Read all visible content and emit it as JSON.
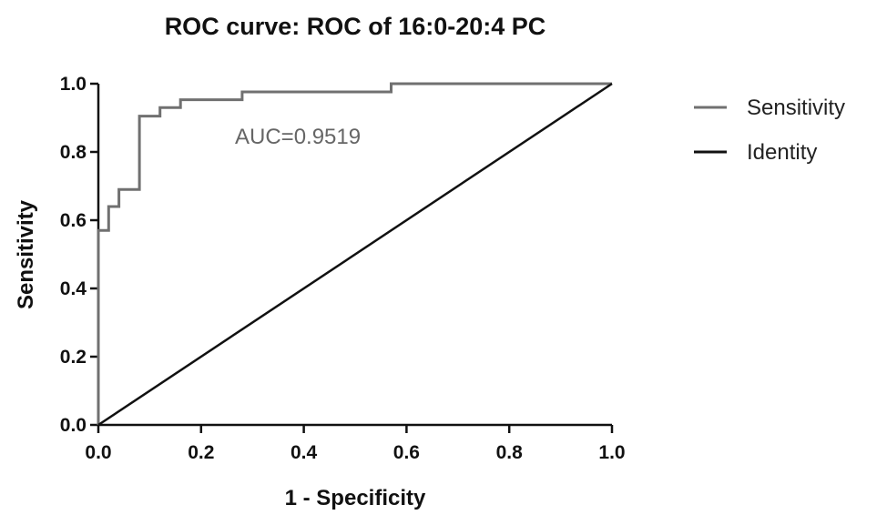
{
  "chart_data": {
    "type": "line",
    "title": "ROC curve: ROC of 16:0-20:4 PC",
    "xlabel": "1 - Specificity",
    "ylabel": "Sensitivity",
    "xlim": [
      0.0,
      1.0
    ],
    "ylim": [
      0.0,
      1.0
    ],
    "x_ticks": [
      "0.0",
      "0.2",
      "0.4",
      "0.6",
      "0.8",
      "1.0"
    ],
    "y_ticks": [
      "0.0",
      "0.2",
      "0.4",
      "0.6",
      "0.8",
      "1.0"
    ],
    "grid": false,
    "legend_position": "right",
    "annotation": "AUC=0.9519",
    "series": [
      {
        "name": "Sensitivity",
        "color": "#707070",
        "step": true,
        "x": [
          0.0,
          0.0,
          0.02,
          0.02,
          0.04,
          0.04,
          0.08,
          0.08,
          0.12,
          0.12,
          0.16,
          0.16,
          0.28,
          0.28,
          0.57,
          0.57,
          1.0
        ],
        "y": [
          0.0,
          0.57,
          0.57,
          0.64,
          0.64,
          0.69,
          0.69,
          0.905,
          0.905,
          0.93,
          0.93,
          0.953,
          0.953,
          0.976,
          0.976,
          1.0,
          1.0
        ]
      },
      {
        "name": "Identity",
        "color": "#111111",
        "step": false,
        "x": [
          0.0,
          1.0
        ],
        "y": [
          0.0,
          1.0
        ]
      }
    ]
  }
}
